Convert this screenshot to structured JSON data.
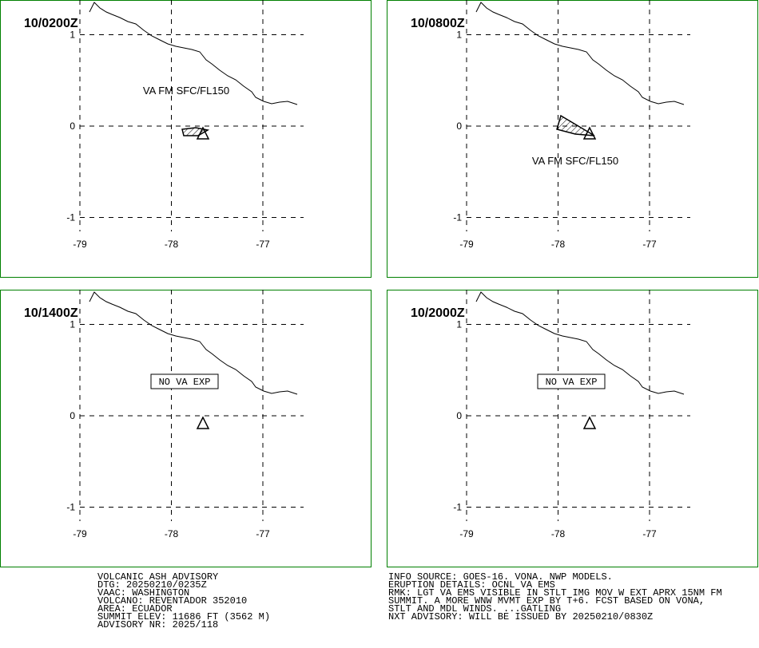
{
  "panels": [
    {
      "time": "10/0200Z",
      "label": "VA FM SFC/FL150"
    },
    {
      "time": "10/0800Z",
      "label": "VA FM SFC/FL150"
    },
    {
      "time": "10/1400Z",
      "label": "NO VA EXP"
    },
    {
      "time": "10/2000Z",
      "label": "NO VA EXP"
    }
  ],
  "lon_ticks": [
    -79,
    -78,
    -77
  ],
  "lat_ticks": [
    1,
    0,
    -1
  ],
  "advisory": {
    "left": [
      "VOLCANIC ASH ADVISORY",
      "DTG: 20250210/0235Z",
      "VAAC: WASHINGTON",
      "VOLCANO: REVENTADOR 352010",
      "AREA: ECUADOR",
      "SUMMIT ELEV: 11686 FT (3562 M)",
      "ADVISORY NR: 2025/118"
    ],
    "right": [
      "INFO SOURCE: GOES-16. VONA. NWP MODELS.",
      "ERUPTION DETAILS: OCNL VA EMS",
      "RMK: LGT VA EMS VISIBLE IN STLT IMG MOV W EXT APRX 15NM FM",
      "SUMMIT. A MORE WNW MVMT EXP BY T+6. FCST BASED ON VONA,",
      "STLT AND MDL WINDS. ...GATLING",
      "NXT ADVISORY: WILL BE ISSUED BY 20250210/0830Z"
    ]
  }
}
